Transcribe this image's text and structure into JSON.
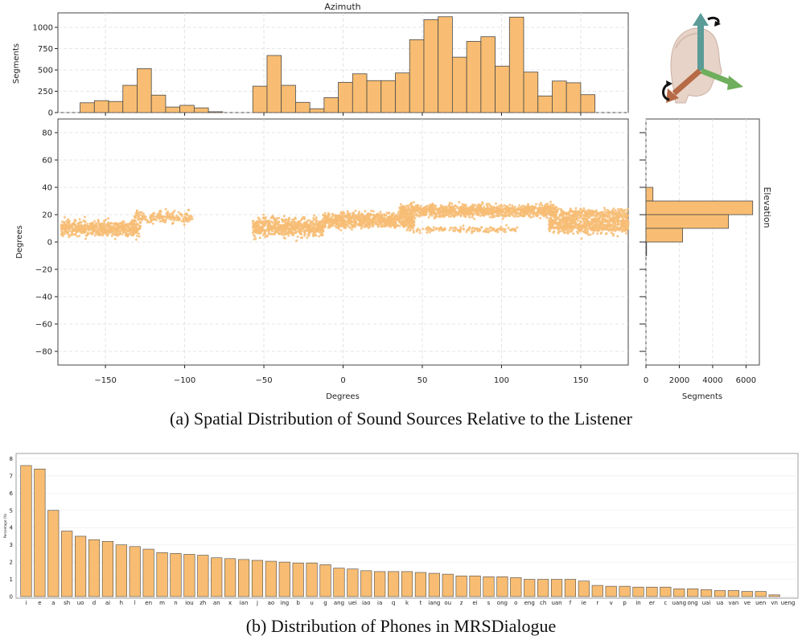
{
  "colors": {
    "bar": "#f8bd72",
    "edge": "#4a4a4a",
    "scatter": "#f7bd76",
    "grid": "#dddddd",
    "frame": "#444444"
  },
  "chart_data": [
    {
      "id": "azimuth-histogram",
      "type": "bar",
      "title": "Azimuth",
      "ylabel": "Segments",
      "xlim": [
        -180,
        180
      ],
      "ylim": [
        0,
        1170
      ],
      "yticks": [
        "0",
        "250",
        "500",
        "750",
        "1000"
      ],
      "bin_width": 9,
      "bins_start": [
        -166,
        -157,
        -148,
        -139,
        -130,
        -121,
        -112,
        -103,
        -94,
        -85,
        -76,
        -57,
        -48,
        -39,
        -30,
        -21,
        -12,
        -3,
        6,
        15,
        24,
        33,
        42,
        51,
        60,
        69,
        78,
        87,
        96,
        105,
        114,
        123,
        132,
        141,
        150,
        159
      ],
      "values": [
        115,
        140,
        130,
        320,
        515,
        205,
        65,
        85,
        55,
        10,
        0,
        310,
        670,
        320,
        120,
        45,
        175,
        355,
        455,
        375,
        375,
        465,
        855,
        1090,
        1125,
        650,
        835,
        890,
        545,
        1120,
        475,
        195,
        370,
        350,
        210,
        0
      ]
    },
    {
      "id": "azimuth-elevation-scatter",
      "type": "scatter",
      "xlabel": "Degrees",
      "ylabel": "Degrees",
      "xlim": [
        -180,
        180
      ],
      "ylim": [
        -90,
        90
      ],
      "xticks": [
        "−150",
        "−100",
        "−50",
        "0",
        "50",
        "100",
        "150"
      ],
      "yticks": [
        "−80",
        "−60",
        "−40",
        "−20",
        "0",
        "20",
        "40",
        "60",
        "80"
      ],
      "clusters": [
        {
          "x": [
            -178,
            -128
          ],
          "y_center": 10,
          "y_spread": 5,
          "n": 620
        },
        {
          "x": [
            -132,
            -95
          ],
          "y_center": 18,
          "y_spread": 4,
          "n": 180
        },
        {
          "x": [
            -57,
            -12
          ],
          "y_center": 11,
          "y_spread": 6,
          "n": 650
        },
        {
          "x": [
            -12,
            45
          ],
          "y_center": 16,
          "y_spread": 5,
          "n": 780
        },
        {
          "x": [
            35,
            135
          ],
          "y_center": 23,
          "y_spread": 4,
          "n": 1100
        },
        {
          "x": [
            40,
            110
          ],
          "y_center": 9,
          "y_spread": 2,
          "n": 140
        },
        {
          "x": [
            130,
            180
          ],
          "y_center": 13,
          "y_spread": 6,
          "n": 650
        },
        {
          "x": [
            130,
            180
          ],
          "y_center": 21,
          "y_spread": 3,
          "n": 260
        }
      ]
    },
    {
      "id": "elevation-histogram",
      "type": "bar",
      "orientation": "horizontal",
      "title": "Elevation",
      "xlabel": "Segments",
      "xlim": [
        0,
        6800
      ],
      "ylim": [
        -90,
        90
      ],
      "xticks": [
        "0",
        "2000",
        "4000",
        "6000"
      ],
      "bins": [
        {
          "from": 30,
          "to": 40,
          "value": 420
        },
        {
          "from": 20,
          "to": 30,
          "value": 6400
        },
        {
          "from": 10,
          "to": 20,
          "value": 4950
        },
        {
          "from": 0,
          "to": 10,
          "value": 2200
        },
        {
          "from": -10,
          "to": 0,
          "value": 30
        }
      ]
    },
    {
      "id": "phone-distribution",
      "type": "bar",
      "ylabel": "Percentage (%)",
      "ylim": [
        0,
        8.3
      ],
      "yticks": [
        "0",
        "1",
        "2",
        "3",
        "4",
        "5",
        "6",
        "7",
        "8"
      ],
      "categories": [
        "i",
        "e",
        "a",
        "sh",
        "uo",
        "d",
        "ai",
        "h",
        "l",
        "en",
        "m",
        "n",
        "iou",
        "zh",
        "an",
        "x",
        "ian",
        "j",
        "ao",
        "ing",
        "b",
        "u",
        "g",
        "ang",
        "uei",
        "iao",
        "ia",
        "q",
        "k",
        "t",
        "iang",
        "ou",
        "z",
        "ei",
        "s",
        "ong",
        "o",
        "eng",
        "ch",
        "uan",
        "f",
        "ie",
        "r",
        "v",
        "p",
        "in",
        "er",
        "c",
        "uang",
        "ong",
        "uai",
        "ua",
        "van",
        "ve",
        "uen",
        "vn",
        "ueng"
      ],
      "values": [
        7.6,
        7.4,
        5.0,
        3.8,
        3.5,
        3.3,
        3.2,
        3.0,
        2.9,
        2.75,
        2.55,
        2.5,
        2.45,
        2.4,
        2.25,
        2.2,
        2.15,
        2.1,
        2.05,
        2.0,
        1.95,
        1.95,
        1.85,
        1.65,
        1.6,
        1.5,
        1.45,
        1.45,
        1.45,
        1.4,
        1.35,
        1.3,
        1.2,
        1.2,
        1.15,
        1.15,
        1.1,
        1.0,
        1.0,
        1.0,
        1.0,
        0.9,
        0.65,
        0.6,
        0.6,
        0.55,
        0.55,
        0.55,
        0.45,
        0.45,
        0.4,
        0.35,
        0.35,
        0.3,
        0.3,
        0.1,
        0.0
      ]
    }
  ],
  "captions": {
    "a": "(a) Spatial Distribution of Sound Sources Relative to the Listener",
    "b": "(b) Distribution of Phones in MRSDialogue"
  }
}
